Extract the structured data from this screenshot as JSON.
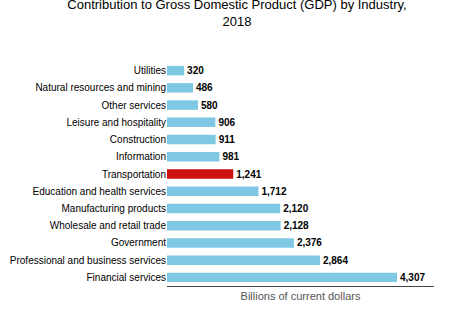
{
  "chart_data": {
    "type": "bar",
    "orientation": "horizontal",
    "title": "Contribution to Gross Domestic Product (GDP) by Industry,\n2018",
    "xlabel": "Billions of current dollars",
    "categories": [
      "Financial services",
      "Professional and business services",
      "Government",
      "Wholesale and retail trade",
      "Manufacturing products",
      "Education and health services",
      "Transportation",
      "Information",
      "Construction",
      "Leisure and hospitality",
      "Other services",
      "Natural resources and mining",
      "Utilities"
    ],
    "values": [
      4307,
      2864,
      2376,
      2128,
      2120,
      1712,
      1241,
      981,
      911,
      906,
      580,
      486,
      320
    ],
    "value_labels": [
      "4,307",
      "2,864",
      "2,376",
      "2,128",
      "2,120",
      "1,712",
      "1,241",
      "981",
      "911",
      "906",
      "580",
      "486",
      "320"
    ],
    "colors": [
      "#7EC8E3",
      "#7EC8E3",
      "#7EC8E3",
      "#7EC8E3",
      "#7EC8E3",
      "#7EC8E3",
      "#CC1111",
      "#7EC8E3",
      "#7EC8E3",
      "#7EC8E3",
      "#7EC8E3",
      "#7EC8E3",
      "#7EC8E3"
    ],
    "xlim": [
      0,
      5000
    ],
    "data_labels": true,
    "tick_labels": "y",
    "grid": false
  }
}
